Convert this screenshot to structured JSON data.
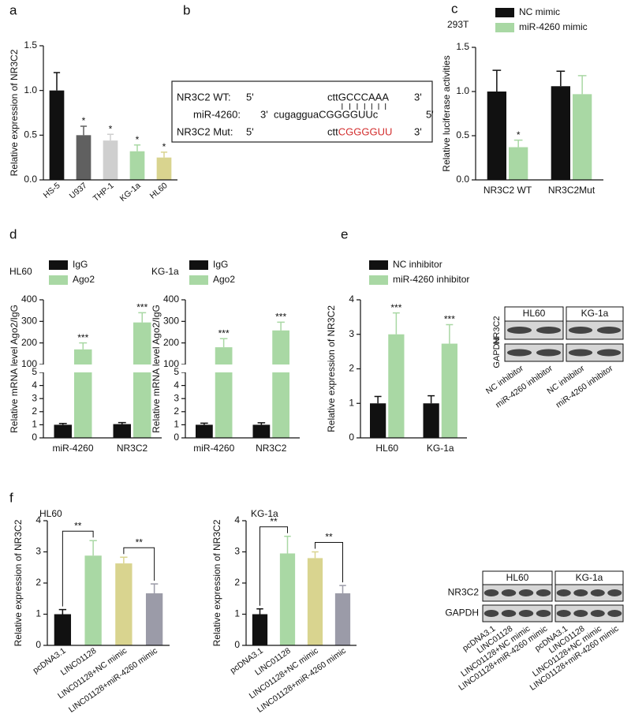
{
  "panels": [
    "a",
    "b",
    "c",
    "d",
    "e",
    "f"
  ],
  "diagram": {
    "rows": [
      {
        "label": "NR3C2 WT:",
        "left": "5'",
        "sequence": "cttGCCCAAA",
        "right": "3'"
      },
      {
        "label": "miR-4260:",
        "left": "3'",
        "sequence": "cugagguaCGGGGUUc",
        "right": "5'"
      },
      {
        "label": "NR3C2 Mut:",
        "left": "5'",
        "sequence": "ctt",
        "highlight": "CGGGGUU",
        "highlight_color": "#d32f2f",
        "right": "3'"
      }
    ]
  },
  "chart_data": [
    {
      "type": "bar",
      "ylabel": "Relative expression of NR3C2",
      "categories": [
        "HS-5",
        "U937",
        "THP-1",
        "KG-1a",
        "HL60"
      ],
      "values": [
        1.0,
        0.5,
        0.44,
        0.32,
        0.25
      ],
      "errors": [
        0.2,
        0.1,
        0.07,
        0.07,
        0.06
      ],
      "colors": [
        "#111111",
        "#606060",
        "#cfcfcf",
        "#a9d8a4",
        "#d9d48f"
      ],
      "significance": [
        null,
        "*",
        "*",
        "*",
        "*"
      ],
      "ylim": [
        0,
        1.5
      ],
      "yticks": [
        {
          "value": 0,
          "label": "0.0"
        },
        {
          "value": 0.5,
          "label": "0.5"
        },
        {
          "value": 1,
          "label": "1.0"
        },
        {
          "value": 1.5,
          "label": "1.5"
        }
      ]
    },
    {
      "type": "bar",
      "title": "293T",
      "ylabel": "Relative luciferase activities",
      "categories": [
        "NR3C2 WT",
        "NR3C2Mut"
      ],
      "series": [
        {
          "name": "NC mimic",
          "color": "#111111",
          "values": [
            1.0,
            1.06
          ],
          "errors": [
            0.24,
            0.17
          ],
          "significance": [
            null,
            null
          ]
        },
        {
          "name": "miR-4260 mimic",
          "color": "#a9d8a4",
          "values": [
            0.37,
            0.97
          ],
          "errors": [
            0.08,
            0.21
          ],
          "significance": [
            "*",
            null
          ]
        }
      ],
      "ylim": [
        0,
        1.5
      ],
      "yticks": [
        {
          "value": 0,
          "label": "0.0"
        },
        {
          "value": 0.5,
          "label": "0.5"
        },
        {
          "value": 1,
          "label": "1.0"
        },
        {
          "value": 1.5,
          "label": "1.5"
        }
      ]
    },
    {
      "type": "bar",
      "title": "HL60",
      "ylabel": "Relative mRNA level Ago2/IgG",
      "categories": [
        "miR-4260",
        "NR3C2"
      ],
      "series": [
        {
          "name": "IgG",
          "color": "#111111",
          "values": [
            1.0,
            1.05
          ],
          "errors": [
            0.1,
            0.12
          ],
          "significance": [
            null,
            null
          ]
        },
        {
          "name": "Ago2",
          "color": "#a9d8a4",
          "values": [
            170,
            295
          ],
          "errors": [
            30,
            45
          ],
          "significance": [
            "***",
            "***"
          ]
        }
      ],
      "ylim": [
        0,
        400
      ],
      "ybreak": [
        5,
        100
      ],
      "yticks": [
        0,
        1,
        2,
        3,
        4,
        5,
        100,
        200,
        300,
        400
      ]
    },
    {
      "type": "bar",
      "title": "KG-1a",
      "ylabel": "Relative mRNA level Ago2/IgG",
      "categories": [
        "miR-4260",
        "NR3C2"
      ],
      "series": [
        {
          "name": "IgG",
          "color": "#111111",
          "values": [
            1.0,
            1.0
          ],
          "errors": [
            0.12,
            0.15
          ],
          "significance": [
            null,
            null
          ]
        },
        {
          "name": "Ago2",
          "color": "#a9d8a4",
          "values": [
            180,
            258
          ],
          "errors": [
            40,
            38
          ],
          "significance": [
            "***",
            "***"
          ]
        }
      ],
      "ylim": [
        0,
        400
      ],
      "ybreak": [
        5,
        100
      ],
      "yticks": [
        0,
        1,
        2,
        3,
        4,
        5,
        100,
        200,
        300,
        400
      ]
    },
    {
      "type": "bar",
      "ylabel": "Relative expression of NR3C2",
      "categories": [
        "HL60",
        "KG-1a"
      ],
      "series": [
        {
          "name": "NC inhibitor",
          "color": "#111111",
          "values": [
            1.0,
            1.0
          ],
          "errors": [
            0.2,
            0.22
          ],
          "significance": [
            null,
            null
          ]
        },
        {
          "name": "miR-4260 inhibitor",
          "color": "#a9d8a4",
          "values": [
            3.0,
            2.73
          ],
          "errors": [
            0.62,
            0.55
          ],
          "significance": [
            "***",
            "***"
          ]
        }
      ],
      "ylim": [
        0,
        4
      ],
      "yticks": [
        0,
        1,
        2,
        3,
        4
      ]
    },
    {
      "type": "bar",
      "title": "HL60",
      "ylabel": "Relative expression of NR3C2",
      "categories": [
        "pcDNA3.1",
        "LINC01128",
        "LINC01128+NC mimic",
        "LINC01128+miR-4260 mimic"
      ],
      "values": [
        1.0,
        2.88,
        2.63,
        1.67
      ],
      "errors": [
        0.15,
        0.48,
        0.2,
        0.3
      ],
      "colors": [
        "#111111",
        "#a9d8a4",
        "#d9d48f",
        "#9b9ba8"
      ],
      "comparisons": [
        {
          "categories": [
            "pcDNA3.1",
            "LINC01128"
          ],
          "label": "**"
        },
        {
          "categories": [
            "LINC01128+NC mimic",
            "LINC01128+miR-4260 mimic"
          ],
          "label": "**"
        }
      ],
      "ylim": [
        0,
        4
      ],
      "yticks": [
        0,
        1,
        2,
        3,
        4
      ]
    },
    {
      "type": "bar",
      "title": "KG-1a",
      "ylabel": "Relative expression of NR3C2",
      "categories": [
        "pcDNA3.1",
        "LINC01128",
        "LINC01128+NC mimic",
        "LINC01128+miR-4260 mimic"
      ],
      "values": [
        1.0,
        2.95,
        2.8,
        1.67
      ],
      "errors": [
        0.17,
        0.55,
        0.2,
        0.25
      ],
      "colors": [
        "#111111",
        "#a9d8a4",
        "#d9d48f",
        "#9b9ba8"
      ],
      "comparisons": [
        {
          "categories": [
            "pcDNA3.1",
            "LINC01128"
          ],
          "label": "**"
        },
        {
          "categories": [
            "LINC01128+NC mimic",
            "LINC01128+miR-4260 mimic"
          ],
          "label": "**"
        }
      ],
      "ylim": [
        0,
        4
      ],
      "yticks": [
        0,
        1,
        2,
        3,
        4
      ]
    }
  ],
  "blots": [
    {
      "rows": [
        "NR3C2",
        "GAPDH"
      ],
      "groups": [
        "HL60",
        "KG-1a"
      ],
      "lanes": [
        "NC inhibitor",
        "miR-4260 inhibitor"
      ]
    },
    {
      "rows": [
        "NR3C2",
        "GAPDH"
      ],
      "groups": [
        "HL60",
        "KG-1a"
      ],
      "lanes": [
        "pcDNA3.1",
        "LINC01128",
        "LINC01128+NC mimic",
        "LINC01128+miR-4260 mimic"
      ]
    }
  ]
}
